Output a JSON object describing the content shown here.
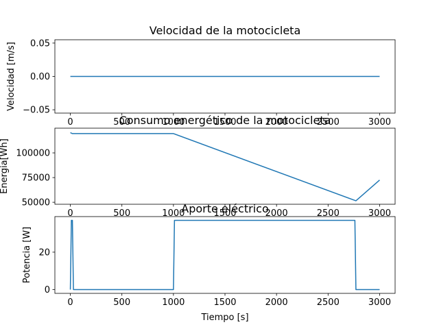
{
  "figure": {
    "line_color": "#1f77b4"
  },
  "chart_data": [
    {
      "type": "line",
      "title": "Velocidad de la motocicleta",
      "xlabel": "",
      "ylabel": "Velocidad [m/s]",
      "xlim": [
        -150,
        3150
      ],
      "ylim": [
        -0.055,
        0.055
      ],
      "xticks": [
        0,
        500,
        1000,
        1500,
        2000,
        2500,
        3000
      ],
      "xtick_labels": [
        "0",
        "500",
        "1000",
        "1500",
        "2000",
        "2500",
        "3000"
      ],
      "yticks": [
        -0.05,
        0.0,
        0.05
      ],
      "ytick_labels": [
        "−0.05",
        "0.00",
        "0.05"
      ],
      "grid": false,
      "series": [
        {
          "x": [
            0,
            3000
          ],
          "y": [
            0,
            0
          ]
        }
      ]
    },
    {
      "type": "line",
      "title": "Consumo energético de la motocicleta",
      "xlabel": "",
      "ylabel": "Energia[Wh]",
      "xlim": [
        -150,
        3150
      ],
      "ylim": [
        48000,
        125000
      ],
      "xticks": [
        0,
        500,
        1000,
        1500,
        2000,
        2500,
        3000
      ],
      "xtick_labels": [
        "0",
        "500",
        "1000",
        "1500",
        "2000",
        "2500",
        "3000"
      ],
      "yticks": [
        50000,
        75000,
        100000
      ],
      "ytick_labels": [
        "50000",
        "75000",
        "100000"
      ],
      "grid": false,
      "series": [
        {
          "x": [
            0,
            20,
            1000,
            2770,
            3000
          ],
          "y": [
            120500,
            119500,
            119500,
            51500,
            72500
          ]
        }
      ]
    },
    {
      "type": "line",
      "title": "Aporte eléctrico",
      "xlabel": "Tiempo [s]",
      "ylabel": "Potencia [W]",
      "xlim": [
        -150,
        3150
      ],
      "ylim": [
        -2,
        39
      ],
      "xticks": [
        0,
        500,
        1000,
        1500,
        2000,
        2500,
        3000
      ],
      "xtick_labels": [
        "0",
        "500",
        "1000",
        "1500",
        "2000",
        "2500",
        "3000"
      ],
      "yticks": [
        0,
        20
      ],
      "ytick_labels": [
        "0",
        "20"
      ],
      "grid": false,
      "series": [
        {
          "x": [
            0,
            10,
            20,
            30,
            1000,
            1010,
            2760,
            2770,
            3000
          ],
          "y": [
            0,
            37,
            37,
            0,
            0,
            37,
            37,
            0,
            0
          ]
        }
      ]
    }
  ]
}
